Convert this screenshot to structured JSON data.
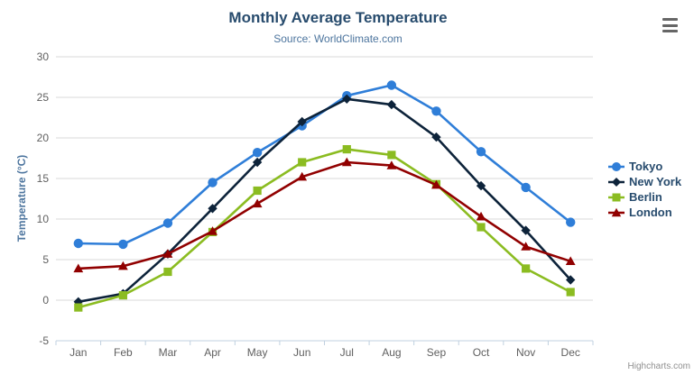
{
  "header": {
    "title": "Monthly Average Temperature",
    "subtitle": "Source: WorldClimate.com"
  },
  "context_menu": {
    "icon": "hamburger-icon"
  },
  "credits": {
    "label": "Highcharts.com"
  },
  "colors": {
    "title": "#274b6d",
    "subtitle": "#4d759e",
    "axis_label": "#606060",
    "axis_title": "#4d759e",
    "gridline": "#d8d8d8",
    "axis_line": "#c0d0e0",
    "legend_text": "#274b6d",
    "credits_text": "#909090",
    "burger": "#666666"
  },
  "chart_data": {
    "type": "line",
    "title": "Monthly Average Temperature",
    "subtitle": "Source: WorldClimate.com",
    "xlabel": "",
    "ylabel": "Temperature (°C)",
    "ylim": [
      -5,
      30
    ],
    "yticks": [
      -5,
      0,
      5,
      10,
      15,
      20,
      25,
      30
    ],
    "grid": true,
    "legend_position": "right",
    "categories": [
      "Jan",
      "Feb",
      "Mar",
      "Apr",
      "May",
      "Jun",
      "Jul",
      "Aug",
      "Sep",
      "Oct",
      "Nov",
      "Dec"
    ],
    "series": [
      {
        "name": "Tokyo",
        "color": "#2f7ed8",
        "marker": "circle",
        "values": [
          7.0,
          6.9,
          9.5,
          14.5,
          18.2,
          21.5,
          25.2,
          26.5,
          23.3,
          18.3,
          13.9,
          9.6
        ]
      },
      {
        "name": "New York",
        "color": "#0d233a",
        "marker": "diamond",
        "values": [
          -0.2,
          0.8,
          5.7,
          11.3,
          17.0,
          22.0,
          24.8,
          24.1,
          20.1,
          14.1,
          8.6,
          2.5
        ]
      },
      {
        "name": "Berlin",
        "color": "#8bbc21",
        "marker": "square",
        "values": [
          -0.9,
          0.6,
          3.5,
          8.4,
          13.5,
          17.0,
          18.6,
          17.9,
          14.3,
          9.0,
          3.9,
          1.0
        ]
      },
      {
        "name": "London",
        "color": "#910000",
        "marker": "triangle",
        "values": [
          3.9,
          4.2,
          5.7,
          8.5,
          11.9,
          15.2,
          17.0,
          16.6,
          14.2,
          10.3,
          6.6,
          4.8
        ]
      }
    ]
  }
}
